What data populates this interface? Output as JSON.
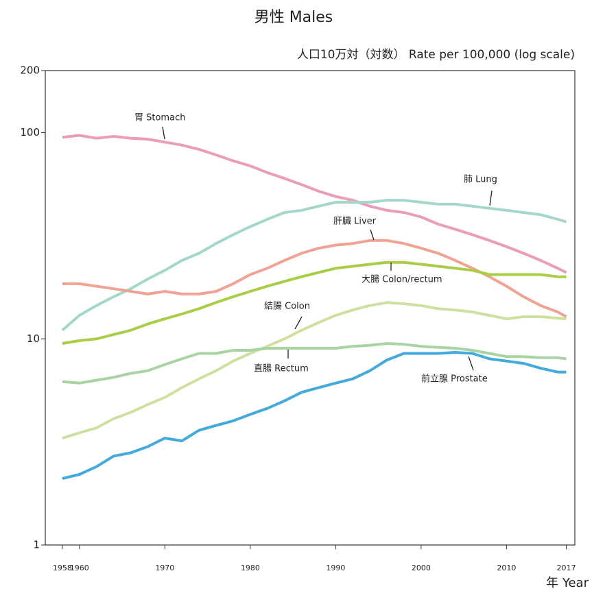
{
  "chart_data": {
    "type": "line",
    "title": "男性 Males",
    "ylabel": "人口10万対（対数） Rate per 100,000 (log scale)",
    "xlabel": "年 Year",
    "yscale": "log",
    "ylim": [
      1,
      200
    ],
    "yticks": [
      1,
      10,
      100,
      200
    ],
    "xlim": [
      1956,
      2018
    ],
    "xticks": [
      1958,
      1960,
      1970,
      1980,
      1990,
      2000,
      2010,
      2017
    ],
    "x": [
      1958,
      1960,
      1962,
      1964,
      1966,
      1968,
      1970,
      1972,
      1974,
      1976,
      1978,
      1980,
      1982,
      1984,
      1986,
      1988,
      1990,
      1992,
      1994,
      1996,
      1998,
      2000,
      2002,
      2004,
      2006,
      2008,
      2010,
      2012,
      2014,
      2016,
      2017
    ],
    "series": [
      {
        "name": "胃 Stomach",
        "color": "#eb9db5",
        "values": [
          95,
          97,
          94,
          96,
          94,
          93,
          90,
          87,
          83,
          78,
          73,
          69,
          64,
          60,
          56,
          52,
          49,
          47,
          44,
          42,
          41,
          39,
          36,
          34,
          32,
          30,
          28,
          26,
          24,
          22,
          21
        ]
      },
      {
        "name": "肺 Lung",
        "color": "#a3d7cb",
        "values": [
          11,
          13,
          14.5,
          16,
          17.5,
          19.5,
          21.5,
          24,
          26,
          29,
          32,
          35,
          38,
          41,
          42,
          44,
          46,
          46,
          46,
          47,
          47,
          46,
          45,
          45,
          44,
          43,
          42,
          41,
          40,
          38,
          37
        ]
      },
      {
        "name": "肝臓 Liver",
        "color": "#f0a393",
        "values": [
          18.5,
          18.5,
          18,
          17.5,
          17,
          16.5,
          17,
          16.5,
          16.5,
          17,
          18.5,
          20.5,
          22,
          24,
          26,
          27.5,
          28.5,
          29,
          30,
          30,
          29,
          27.5,
          26,
          24,
          22,
          20,
          18,
          16,
          14.5,
          13.5,
          12.8
        ]
      },
      {
        "name": "大腸 Colon/rectum",
        "color": "#a9cd45",
        "values": [
          9.5,
          9.8,
          10,
          10.5,
          11,
          11.8,
          12.5,
          13.2,
          14,
          15,
          16,
          17,
          18,
          19,
          20,
          21,
          22,
          22.5,
          23,
          23.5,
          23.5,
          23,
          22.5,
          22,
          21.5,
          20.5,
          20.5,
          20.5,
          20.5,
          20,
          20
        ]
      },
      {
        "name": "結腸 Colon",
        "color": "#cde0a0",
        "values": [
          3.3,
          3.5,
          3.7,
          4.1,
          4.4,
          4.8,
          5.2,
          5.8,
          6.4,
          7,
          7.8,
          8.5,
          9.2,
          10,
          11,
          12,
          13,
          13.8,
          14.5,
          15,
          14.8,
          14.5,
          14,
          13.8,
          13.5,
          13,
          12.5,
          12.8,
          12.8,
          12.6,
          12.5
        ]
      },
      {
        "name": "直腸 Rectum",
        "color": "#a9d3a3",
        "values": [
          6.2,
          6.1,
          6.3,
          6.5,
          6.8,
          7,
          7.5,
          8,
          8.5,
          8.5,
          8.8,
          8.8,
          9,
          9,
          9,
          9,
          9,
          9.2,
          9.3,
          9.5,
          9.4,
          9.2,
          9.1,
          9,
          8.8,
          8.5,
          8.2,
          8.2,
          8.1,
          8.1,
          8
        ]
      },
      {
        "name": "前立腺 Prostate",
        "color": "#44aadc",
        "values": [
          2.1,
          2.2,
          2.4,
          2.7,
          2.8,
          3,
          3.3,
          3.2,
          3.6,
          3.8,
          4,
          4.3,
          4.6,
          5,
          5.5,
          5.8,
          6.1,
          6.4,
          7,
          7.9,
          8.5,
          8.5,
          8.5,
          8.6,
          8.5,
          8,
          7.8,
          7.6,
          7.2,
          6.9,
          6.9
        ]
      }
    ]
  }
}
